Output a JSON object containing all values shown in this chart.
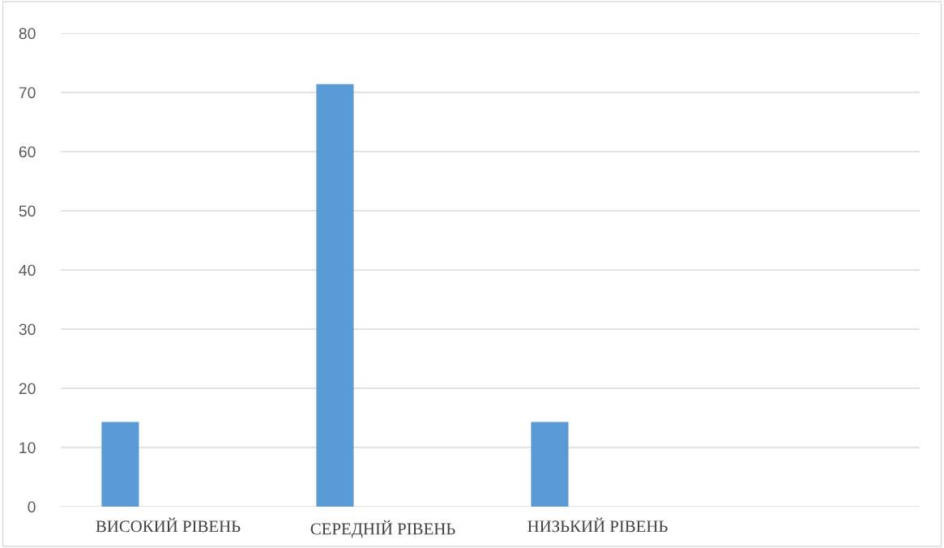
{
  "chart_data": {
    "type": "bar",
    "categories": [
      "ВИСОКИЙ РІВЕНЬ",
      "СЕРЕДНІЙ РІВЕНЬ",
      "НИЗЬКИЙ РІВЕНЬ",
      null
    ],
    "series": [
      {
        "color": "#5b9bd5",
        "values": [
          14.3,
          71.4,
          14.3,
          null
        ]
      }
    ],
    "ylim": [
      0,
      80
    ],
    "yticks": [
      0,
      10,
      20,
      30,
      40,
      50,
      60,
      70,
      80
    ],
    "grid": "y"
  }
}
